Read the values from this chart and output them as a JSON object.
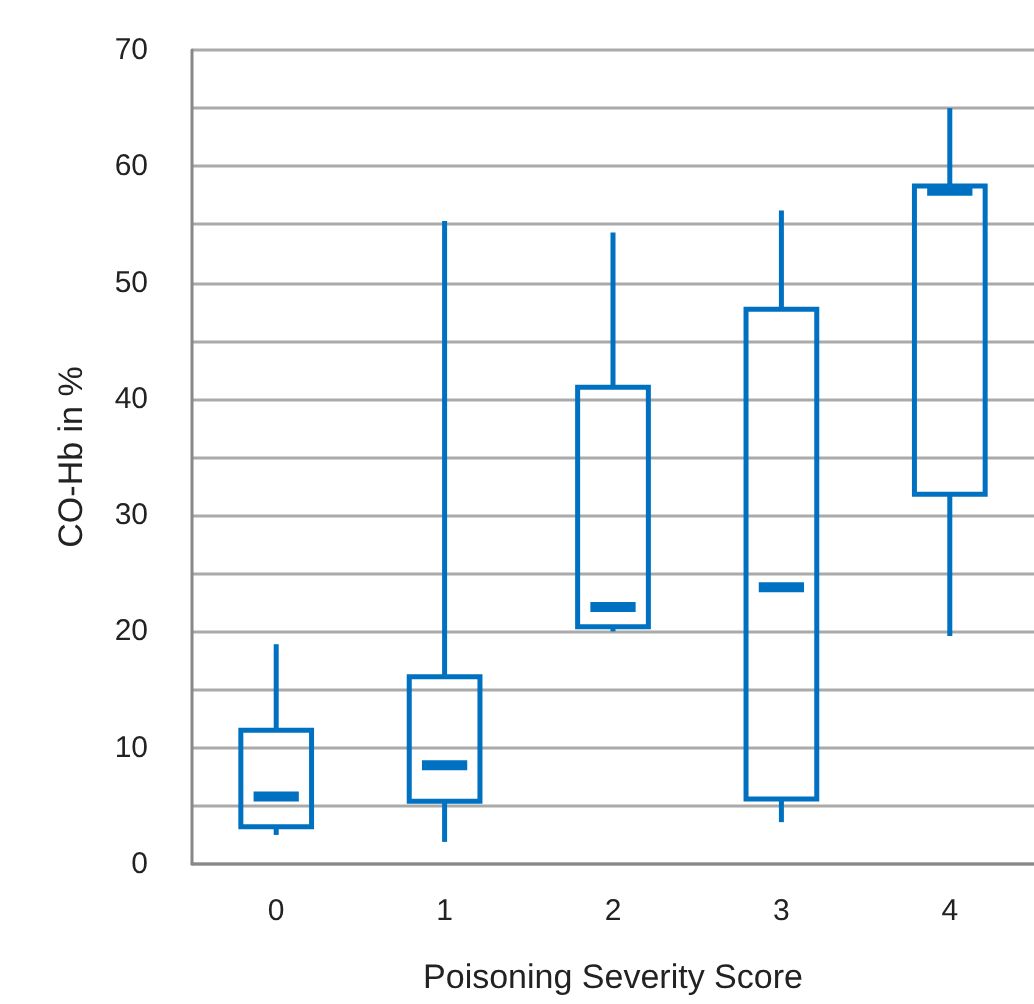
{
  "chart_data": {
    "type": "box",
    "xlabel": "Poisoning Severity Score",
    "ylabel": "CO-Hb in %",
    "categories": [
      "0",
      "1",
      "2",
      "3",
      "4"
    ],
    "series": [
      {
        "color": "#0070c0",
        "boxes": [
          {
            "low": 2.5,
            "q1": 3.2,
            "median": 5.8,
            "q3": 11.5,
            "high": 18.9
          },
          {
            "low": 1.9,
            "q1": 5.4,
            "median": 8.5,
            "q3": 16.1,
            "high": 55.3
          },
          {
            "low": 20.0,
            "q1": 20.4,
            "median": 22.1,
            "q3": 41.0,
            "high": 54.3
          },
          {
            "low": 3.6,
            "q1": 5.6,
            "median": 23.8,
            "q3": 47.7,
            "high": 56.2
          },
          {
            "low": 19.6,
            "q1": 31.8,
            "median": 57.9,
            "q3": 58.3,
            "high": 65.0
          }
        ]
      }
    ],
    "ylim": [
      0,
      70
    ],
    "yticks": [
      0,
      {
        "value": 5,
        "label": null
      },
      10,
      {
        "value": 15,
        "label": null
      },
      20,
      {
        "value": 25,
        "label": null
      },
      30,
      {
        "value": 35,
        "label": null
      },
      40,
      {
        "value": 45,
        "label": null
      },
      50,
      {
        "value": 55,
        "label": null
      },
      60,
      {
        "value": 65,
        "label": null
      },
      70
    ],
    "grid": "y"
  }
}
